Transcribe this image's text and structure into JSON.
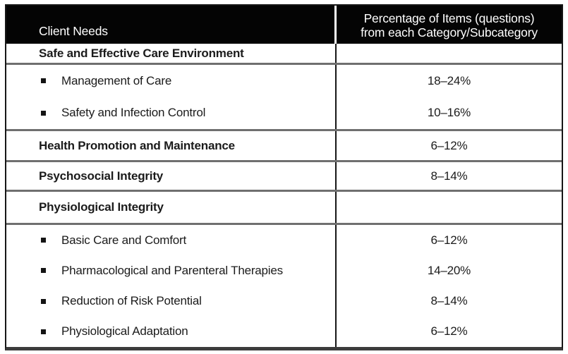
{
  "table": {
    "colors": {
      "header_bg": "#000000",
      "header_text": "#ffffff",
      "body_text": "#1b1b1b",
      "outer_border": "#161616",
      "row_divider_gray": "#6f6f6f",
      "bottom_border": "#3c3c3c"
    },
    "header": {
      "client_needs": "Client Needs",
      "percentage_line1": "Percentage of Items (questions)",
      "percentage_line2": "from each Category/Subcategory"
    },
    "categories": [
      {
        "label": "Safe and Effective Care Environment",
        "value": "",
        "items": [
          {
            "label": "Management of Care",
            "value": "18–24%"
          },
          {
            "label": "Safety and Infection Control",
            "value": "10–16%"
          }
        ]
      },
      {
        "label": "Health Promotion and Maintenance",
        "value": "6–12%",
        "items": []
      },
      {
        "label": "Psychosocial Integrity",
        "value": "8–14%",
        "items": []
      },
      {
        "label": "Physiological Integrity",
        "value": "",
        "items": [
          {
            "label": "Basic Care and Comfort",
            "value": "6–12%"
          },
          {
            "label": "Pharmacological and Parenteral Therapies",
            "value": "14–20%"
          },
          {
            "label": "Reduction of Risk Potential",
            "value": "8–14%"
          },
          {
            "label": "Physiological Adaptation",
            "value": "6–12%"
          }
        ]
      }
    ]
  }
}
